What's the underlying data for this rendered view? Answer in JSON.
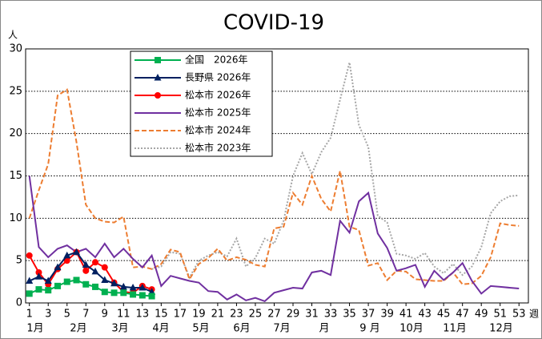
{
  "chart_data": {
    "type": "line",
    "title": "COVID-19",
    "y_unit": "人",
    "x_unit": "週",
    "month_labels": [
      "1月",
      "2月",
      "3月",
      "4月",
      "5月",
      "6月",
      "7月",
      "月",
      "9 月",
      "10月",
      "11月",
      "12月"
    ],
    "x": [
      1,
      2,
      3,
      4,
      5,
      6,
      7,
      8,
      9,
      10,
      11,
      12,
      13,
      14,
      15,
      16,
      17,
      18,
      19,
      20,
      21,
      22,
      23,
      24,
      25,
      26,
      27,
      28,
      29,
      30,
      31,
      32,
      33,
      34,
      35,
      36,
      37,
      38,
      39,
      40,
      41,
      42,
      43,
      44,
      45,
      46,
      47,
      48,
      49,
      50,
      51,
      52,
      53
    ],
    "xlim": [
      0.6,
      54
    ],
    "xticks": [
      1,
      3,
      5,
      7,
      9,
      11,
      13,
      15,
      17,
      19,
      21,
      23,
      25,
      27,
      29,
      31,
      33,
      35,
      37,
      39,
      41,
      43,
      45,
      47,
      49,
      51,
      53
    ],
    "ylim": [
      0,
      30
    ],
    "yticks": [
      0,
      5,
      10,
      15,
      20,
      25,
      30
    ],
    "grid": true,
    "legend": "upper left",
    "series": [
      {
        "name": "全国　2026年",
        "color": "#00b050",
        "marker": "square",
        "dash": "solid",
        "values": [
          1.1,
          1.6,
          1.5,
          2.0,
          2.5,
          2.7,
          2.2,
          1.9,
          1.3,
          1.2,
          1.2,
          1.0,
          0.9,
          0.8,
          null,
          null,
          null,
          null,
          null,
          null,
          null,
          null,
          null,
          null,
          null,
          null,
          null,
          null,
          null,
          null,
          null,
          null,
          null,
          null,
          null,
          null,
          null,
          null,
          null,
          null,
          null,
          null,
          null,
          null,
          null,
          null,
          null,
          null,
          null,
          null,
          null,
          null,
          null
        ]
      },
      {
        "name": "長野県 2026年",
        "color": "#002060",
        "marker": "triangle",
        "dash": "solid",
        "values": [
          2.6,
          3.1,
          2.6,
          4.2,
          5.6,
          6.0,
          4.5,
          3.7,
          2.7,
          2.3,
          1.9,
          1.8,
          1.8,
          1.3,
          null,
          null,
          null,
          null,
          null,
          null,
          null,
          null,
          null,
          null,
          null,
          null,
          null,
          null,
          null,
          null,
          null,
          null,
          null,
          null,
          null,
          null,
          null,
          null,
          null,
          null,
          null,
          null,
          null,
          null,
          null,
          null,
          null,
          null,
          null,
          null,
          null,
          null,
          null
        ]
      },
      {
        "name": "松本市 2026年",
        "color": "#ff0000",
        "marker": "circle",
        "dash": "solid",
        "values": [
          5.6,
          3.6,
          2.2,
          4.0,
          5.0,
          6.0,
          3.8,
          4.8,
          4.2,
          2.4,
          1.3,
          1.2,
          2.0,
          1.6,
          null,
          null,
          null,
          null,
          null,
          null,
          null,
          null,
          null,
          null,
          null,
          null,
          null,
          null,
          null,
          null,
          null,
          null,
          null,
          null,
          null,
          null,
          null,
          null,
          null,
          null,
          null,
          null,
          null,
          null,
          null,
          null,
          null,
          null,
          null,
          null,
          null,
          null,
          null
        ]
      },
      {
        "name": "松本市 2025年",
        "color": "#7030a0",
        "marker": "none",
        "dash": "solid",
        "values": [
          15.0,
          6.6,
          5.4,
          6.4,
          6.8,
          6.0,
          6.4,
          5.4,
          7.0,
          5.4,
          6.4,
          5.2,
          4.2,
          5.6,
          2.0,
          3.2,
          2.9,
          2.6,
          2.4,
          1.4,
          1.3,
          0.4,
          1.0,
          0.3,
          0.6,
          0.2,
          1.2,
          1.5,
          1.8,
          1.7,
          3.6,
          3.8,
          3.3,
          9.7,
          8.3,
          12.0,
          13.0,
          8.2,
          6.5,
          3.8,
          4.1,
          4.5,
          1.9,
          3.8,
          2.7,
          3.6,
          4.7,
          2.6,
          1.1,
          2.0,
          1.9,
          1.8,
          1.7
        ]
      },
      {
        "name": "松本市 2024年",
        "color": "#ed7d31",
        "marker": "none",
        "dash": "dashed",
        "values": [
          10.0,
          13.3,
          16.4,
          24.5,
          25.2,
          19.0,
          11.6,
          10.0,
          9.6,
          9.5,
          10.2,
          4.2,
          4.3,
          4.0,
          4.6,
          6.3,
          6.0,
          2.8,
          4.6,
          5.3,
          6.4,
          5.0,
          5.4,
          5.1,
          4.5,
          4.3,
          8.8,
          9.0,
          13.0,
          11.6,
          15.0,
          12.3,
          10.8,
          15.6,
          9.0,
          8.6,
          4.4,
          4.7,
          2.7,
          3.8,
          3.7,
          2.8,
          2.7,
          2.6,
          2.6,
          3.6,
          2.2,
          2.3,
          3.2,
          5.4,
          9.4,
          9.2,
          9.1
        ]
      },
      {
        "name": "松本市 2023年",
        "color": "#a6a6a6",
        "marker": "none",
        "dash": "dotted",
        "values": [
          null,
          null,
          null,
          null,
          null,
          null,
          null,
          null,
          null,
          null,
          null,
          null,
          null,
          4.0,
          4.3,
          6.0,
          5.8,
          3.0,
          5.0,
          5.6,
          6.0,
          5.5,
          7.6,
          4.3,
          5.3,
          7.6,
          7.0,
          9.7,
          15.0,
          17.7,
          15.2,
          17.8,
          19.5,
          24.0,
          28.4,
          21.0,
          18.4,
          10.3,
          9.5,
          5.8,
          5.6,
          5.2,
          5.9,
          4.3,
          3.5,
          4.6,
          3.3,
          4.3,
          6.6,
          10.6,
          12.0,
          12.6,
          12.7
        ]
      }
    ]
  }
}
